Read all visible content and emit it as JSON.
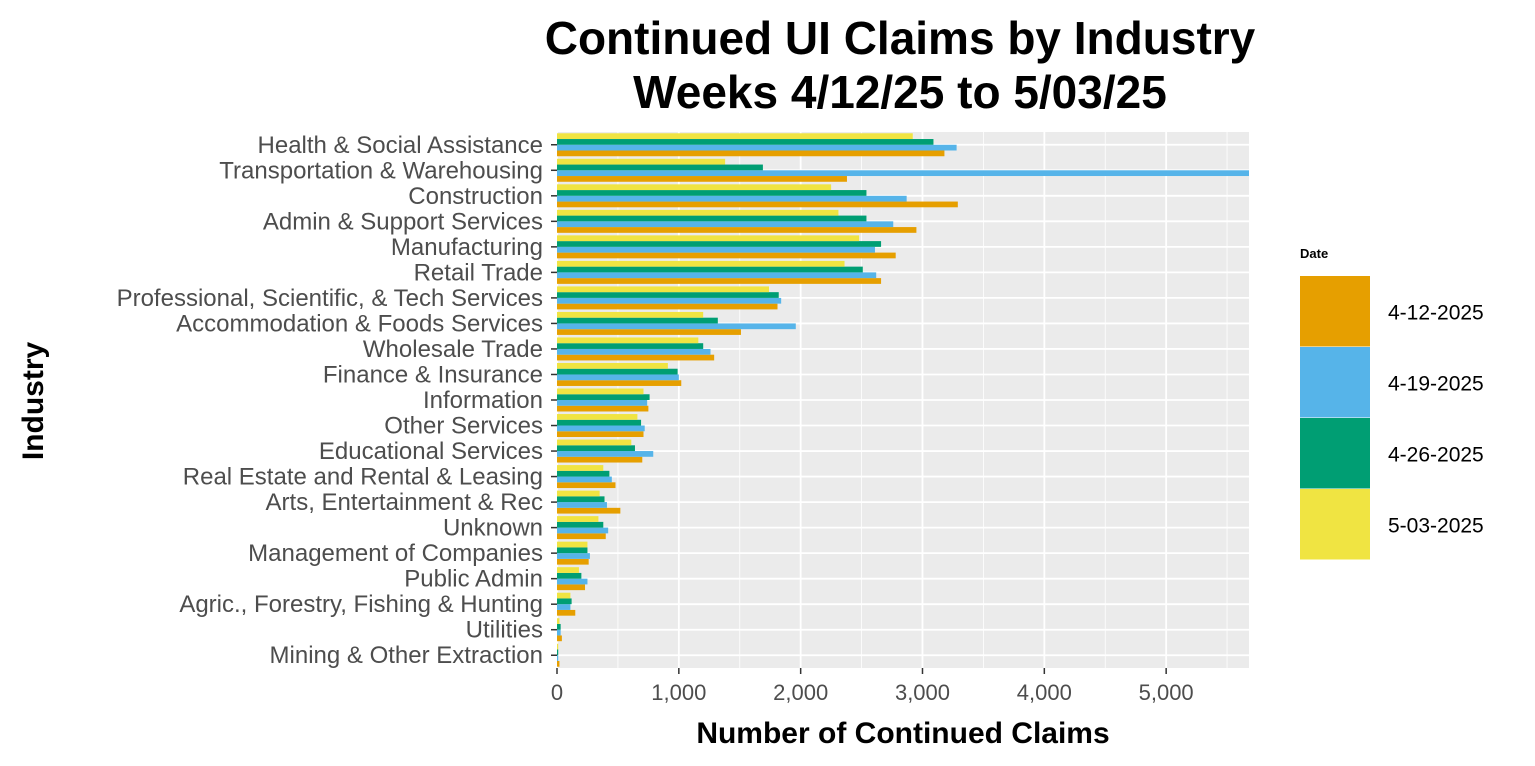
{
  "chart_data": {
    "type": "bar",
    "orientation": "horizontal",
    "title": "Continued UI Claims by Industry",
    "subtitle": "Weeks 4/12/25 to 5/03/25",
    "xlabel": "Number of Continued Claims",
    "ylabel": "Industry",
    "xlim": [
      0,
      5680
    ],
    "x_ticks": [
      0,
      1000,
      2000,
      3000,
      4000,
      5000
    ],
    "x_tick_labels": [
      "0",
      "1,000",
      "2,000",
      "3,000",
      "4,000",
      "5,000"
    ],
    "grid": true,
    "legend": {
      "title": "Date",
      "position": "right"
    },
    "categories": [
      "Health & Social Assistance",
      "Transportation & Warehousing",
      "Construction",
      "Admin & Support Services",
      "Manufacturing",
      "Retail Trade",
      "Professional, Scientific, & Tech Services",
      "Accommodation & Foods Services",
      "Wholesale Trade",
      "Finance & Insurance",
      "Information",
      "Other Services",
      "Educational Services",
      "Real Estate and Rental & Leasing",
      "Arts, Entertainment & Rec",
      "Unknown",
      "Management of Companies",
      "Public Admin",
      "Agric., Forestry, Fishing & Hunting",
      "Utilities",
      "Mining & Other Extraction"
    ],
    "series": [
      {
        "name": "4-12-2025",
        "color": "#E69F00",
        "values": [
          3180,
          2380,
          3290,
          2950,
          2780,
          2660,
          1810,
          1510,
          1290,
          1020,
          750,
          710,
          700,
          480,
          520,
          400,
          260,
          230,
          150,
          40,
          20
        ]
      },
      {
        "name": "4-19-2025",
        "color": "#56B4E9",
        "values": [
          3280,
          5680,
          2870,
          2760,
          2610,
          2620,
          1840,
          1960,
          1260,
          1000,
          740,
          720,
          790,
          450,
          410,
          420,
          270,
          250,
          110,
          30,
          10
        ]
      },
      {
        "name": "4-26-2025",
        "color": "#009E73",
        "values": [
          3090,
          1690,
          2540,
          2540,
          2660,
          2510,
          1820,
          1320,
          1200,
          990,
          760,
          690,
          640,
          430,
          390,
          380,
          250,
          200,
          120,
          30,
          10
        ]
      },
      {
        "name": "5-03-2025",
        "color": "#F0E442",
        "values": [
          2920,
          1380,
          2250,
          2310,
          2480,
          2360,
          1740,
          1200,
          1160,
          910,
          710,
          660,
          610,
          380,
          350,
          340,
          250,
          180,
          110,
          20,
          10
        ]
      }
    ]
  }
}
